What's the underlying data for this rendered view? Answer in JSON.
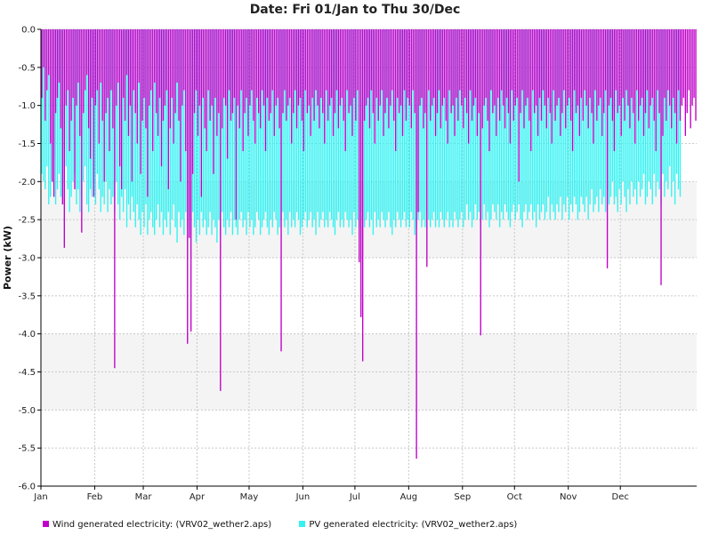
{
  "chart_data": {
    "type": "bar",
    "title": "Date: Fri 01/Jan to Thu 30/Dec",
    "xlabel": "",
    "ylabel": "Power (kW)",
    "ylim": [
      -6.0,
      0.0
    ],
    "yticks": [
      "0.0",
      "-0.5",
      "-1.0",
      "-1.5",
      "-2.0",
      "-2.5",
      "-3.0",
      "-3.5",
      "-4.0",
      "-4.5",
      "-5.0",
      "-5.5",
      "-6.0"
    ],
    "xticks": [
      "Jan",
      "Feb",
      "Mar",
      "Apr",
      "May",
      "Jun",
      "Jul",
      "Aug",
      "Sep",
      "Oct",
      "Nov",
      "Dec"
    ],
    "grid": true,
    "legend_position": "bottom",
    "colors": {
      "wind": "#c000c8",
      "pv": "#33f2f2",
      "band": "#f4f4f4",
      "grid": "#c8c8c8"
    },
    "series": [
      {
        "name": "Wind generated electricity:  (VRV02_wether2.aps)",
        "daily_min": [
          -0.9,
          -0.5,
          -1.2,
          -0.8,
          -0.6,
          -1.5,
          -2.0,
          -2.2,
          -1.1,
          -0.9,
          -0.7,
          -1.3,
          -2.3,
          -2.87,
          -1.0,
          -0.8,
          -1.6,
          -1.2,
          -0.9,
          -2.1,
          -1.0,
          -0.7,
          -1.4,
          -2.67,
          -1.1,
          -0.8,
          -0.6,
          -1.3,
          -1.7,
          -0.9,
          -2.2,
          -1.0,
          -0.8,
          -1.5,
          -0.7,
          -1.2,
          -2.0,
          -1.1,
          -0.9,
          -1.6,
          -0.8,
          -1.3,
          -4.45,
          -1.0,
          -0.7,
          -1.8,
          -2.1,
          -0.9,
          -1.2,
          -0.6,
          -1.4,
          -1.0,
          -2.0,
          -0.8,
          -1.1,
          -1.5,
          -0.7,
          -1.9,
          -1.2,
          -0.9,
          -1.3,
          -2.2,
          -1.0,
          -0.8,
          -1.6,
          -0.7,
          -1.1,
          -1.4,
          -0.9,
          -1.8,
          -1.2,
          -1.0,
          -0.8,
          -2.1,
          -1.3,
          -0.9,
          -1.5,
          -1.1,
          -0.7,
          -1.2,
          -2.0,
          -1.0,
          -0.8,
          -1.6,
          -4.13,
          -2.74,
          -3.97,
          -1.9,
          -1.1,
          -0.8,
          -1.4,
          -1.0,
          -2.2,
          -0.9,
          -1.3,
          -1.6,
          -0.8,
          -1.2,
          -1.0,
          -1.9,
          -0.9,
          -1.4,
          -1.1,
          -4.75,
          -1.3,
          -0.9,
          -1.0,
          -1.7,
          -0.8,
          -1.2,
          -1.1,
          -0.9,
          -2.5,
          -1.0,
          -1.3,
          -0.8,
          -1.6,
          -1.1,
          -0.9,
          -1.4,
          -1.0,
          -0.8,
          -1.2,
          -1.5,
          -0.9,
          -1.1,
          -1.3,
          -0.8,
          -1.0,
          -1.6,
          -0.9,
          -1.2,
          -1.1,
          -0.8,
          -1.4,
          -1.0,
          -0.9,
          -1.3,
          -4.23,
          -1.1,
          -0.8,
          -1.2,
          -1.0,
          -0.9,
          -1.5,
          -1.1,
          -0.8,
          -1.3,
          -1.0,
          -0.9,
          -1.2,
          -1.6,
          -0.8,
          -1.1,
          -1.0,
          -1.4,
          -0.9,
          -1.2,
          -0.8,
          -1.0,
          -1.3,
          -0.9,
          -1.1,
          -1.5,
          -0.8,
          -1.2,
          -1.0,
          -0.9,
          -1.4,
          -1.1,
          -0.8,
          -1.3,
          -1.0,
          -0.9,
          -1.2,
          -1.6,
          -0.8,
          -1.1,
          -1.0,
          -1.4,
          -0.9,
          -1.2,
          -0.8,
          -3.06,
          -3.78,
          -4.36,
          -1.2,
          -1.0,
          -0.9,
          -1.3,
          -0.8,
          -1.1,
          -1.5,
          -0.9,
          -1.2,
          -1.0,
          -0.8,
          -1.4,
          -1.1,
          -0.9,
          -1.3,
          -1.0,
          -0.8,
          -1.2,
          -1.6,
          -0.9,
          -1.1,
          -1.0,
          -1.4,
          -0.8,
          -1.2,
          -0.9,
          -1.0,
          -1.3,
          -0.8,
          -1.1,
          -5.64,
          -2.4,
          -1.0,
          -0.9,
          -1.3,
          -1.1,
          -3.12,
          -0.8,
          -1.2,
          -1.0,
          -0.9,
          -1.4,
          -1.1,
          -0.8,
          -1.3,
          -1.0,
          -0.9,
          -1.2,
          -1.5,
          -0.8,
          -1.1,
          -1.0,
          -1.4,
          -0.9,
          -1.2,
          -0.8,
          -1.0,
          -1.3,
          -0.9,
          -1.1,
          -1.5,
          -0.8,
          -1.2,
          -1.0,
          -0.9,
          -1.4,
          -1.1,
          -4.02,
          -1.3,
          -1.0,
          -0.9,
          -1.2,
          -1.6,
          -0.8,
          -1.1,
          -1.0,
          -1.4,
          -0.9,
          -1.2,
          -0.8,
          -1.0,
          -1.3,
          -0.9,
          -1.1,
          -1.5,
          -0.8,
          -1.2,
          -1.0,
          -0.9,
          -2.0,
          -1.1,
          -0.8,
          -1.3,
          -1.0,
          -0.9,
          -1.2,
          -1.6,
          -0.8,
          -1.1,
          -1.0,
          -1.4,
          -0.9,
          -1.2,
          -0.8,
          -1.0,
          -1.3,
          -0.9,
          -1.1,
          -1.5,
          -0.8,
          -1.2,
          -1.0,
          -0.9,
          -1.4,
          -1.1,
          -0.8,
          -1.3,
          -1.0,
          -0.9,
          -1.2,
          -1.6,
          -0.8,
          -1.1,
          -1.0,
          -1.4,
          -0.9,
          -1.2,
          -0.8,
          -1.0,
          -1.3,
          -0.9,
          -1.1,
          -1.5,
          -0.8,
          -1.2,
          -1.0,
          -0.9,
          -1.4,
          -1.1,
          -0.8,
          -3.14,
          -1.0,
          -0.9,
          -1.2,
          -1.6,
          -0.8,
          -1.1,
          -1.0,
          -1.4,
          -0.9,
          -1.2,
          -0.8,
          -1.0,
          -1.3,
          -0.9,
          -1.1,
          -1.5,
          -0.8,
          -1.2,
          -1.0,
          -0.9,
          -1.4,
          -1.1,
          -0.8,
          -1.3,
          -1.0,
          -0.9,
          -1.2,
          -1.6,
          -0.8,
          -1.1,
          -3.36,
          -1.4,
          -0.9,
          -1.2,
          -0.8,
          -1.0,
          -1.3,
          -0.9,
          -1.1,
          -1.5,
          -0.8,
          -1.2,
          -1.0,
          -0.9,
          -1.4,
          -1.1,
          -0.8,
          -1.3,
          -1.0,
          -0.9,
          -1.2
        ]
      },
      {
        "name": "PV generated electricity:  (VRV02_wether2.aps)",
        "daily_min": [
          -1.9,
          -2.0,
          -2.1,
          -1.8,
          -2.3,
          -2.2,
          -2.0,
          -1.7,
          -2.3,
          -2.1,
          -1.9,
          -2.2,
          -2.3,
          -2.0,
          -1.8,
          -2.1,
          -2.4,
          -2.2,
          -2.0,
          -1.9,
          -2.3,
          -2.1,
          -2.4,
          -2.2,
          -2.0,
          -1.8,
          -2.3,
          -2.4,
          -2.1,
          -2.2,
          -2.0,
          -2.3,
          -1.9,
          -2.1,
          -2.4,
          -2.2,
          -2.3,
          -2.0,
          -2.4,
          -2.1,
          -2.3,
          -2.2,
          -2.4,
          -2.0,
          -2.3,
          -2.5,
          -2.2,
          -2.4,
          -2.1,
          -2.6,
          -2.3,
          -2.5,
          -2.2,
          -2.4,
          -2.6,
          -2.3,
          -2.5,
          -2.7,
          -2.4,
          -2.6,
          -2.3,
          -2.7,
          -2.5,
          -2.4,
          -2.6,
          -2.7,
          -2.5,
          -2.3,
          -2.6,
          -2.4,
          -2.7,
          -2.5,
          -2.6,
          -2.4,
          -2.7,
          -2.5,
          -2.3,
          -2.6,
          -2.8,
          -2.4,
          -2.6,
          -2.5,
          -2.7,
          -2.4,
          -2.6,
          -2.5,
          -2.7,
          -2.4,
          -2.6,
          -2.8,
          -2.5,
          -2.7,
          -2.4,
          -2.6,
          -2.5,
          -2.7,
          -2.6,
          -2.4,
          -2.7,
          -2.5,
          -2.6,
          -2.8,
          -2.5,
          -2.7,
          -2.4,
          -2.6,
          -2.7,
          -2.5,
          -2.6,
          -2.4,
          -2.7,
          -2.5,
          -2.6,
          -2.7,
          -2.5,
          -2.4,
          -2.6,
          -2.5,
          -2.7,
          -2.4,
          -2.6,
          -2.5,
          -2.7,
          -2.6,
          -2.4,
          -2.5,
          -2.7,
          -2.6,
          -2.5,
          -2.4,
          -2.6,
          -2.7,
          -2.5,
          -2.6,
          -2.4,
          -2.5,
          -2.7,
          -2.6,
          -2.5,
          -2.4,
          -2.6,
          -2.5,
          -2.7,
          -2.4,
          -2.6,
          -2.5,
          -2.6,
          -2.4,
          -2.5,
          -2.7,
          -2.6,
          -2.5,
          -2.4,
          -2.6,
          -2.5,
          -2.4,
          -2.6,
          -2.5,
          -2.7,
          -2.4,
          -2.6,
          -2.5,
          -2.4,
          -2.6,
          -2.5,
          -2.6,
          -2.4,
          -2.5,
          -2.6,
          -2.7,
          -2.5,
          -2.4,
          -2.6,
          -2.5,
          -2.6,
          -2.4,
          -2.5,
          -2.6,
          -2.5,
          -2.7,
          -2.4,
          -2.6,
          -2.5,
          -2.6,
          -2.4,
          -2.5,
          -2.6,
          -2.5,
          -2.4,
          -2.6,
          -2.5,
          -2.7,
          -2.4,
          -2.6,
          -2.5,
          -2.6,
          -2.4,
          -2.5,
          -2.6,
          -2.5,
          -2.4,
          -2.6,
          -2.7,
          -2.5,
          -2.6,
          -2.4,
          -2.5,
          -2.6,
          -2.5,
          -2.4,
          -2.6,
          -2.5,
          -2.6,
          -2.4,
          -2.5,
          -2.7,
          -2.6,
          -2.5,
          -2.4,
          -2.6,
          -2.5,
          -2.6,
          -2.4,
          -2.5,
          -2.6,
          -2.5,
          -2.4,
          -2.6,
          -2.5,
          -2.6,
          -2.4,
          -2.5,
          -2.6,
          -2.5,
          -2.4,
          -2.6,
          -2.5,
          -2.6,
          -2.4,
          -2.5,
          -2.6,
          -2.5,
          -2.4,
          -2.6,
          -2.5,
          -2.3,
          -2.5,
          -2.4,
          -2.6,
          -2.5,
          -2.3,
          -2.5,
          -2.4,
          -2.6,
          -2.5,
          -2.3,
          -2.5,
          -2.4,
          -2.6,
          -2.5,
          -2.3,
          -2.4,
          -2.5,
          -2.3,
          -2.6,
          -2.4,
          -2.5,
          -2.3,
          -2.4,
          -2.5,
          -2.6,
          -2.4,
          -2.3,
          -2.5,
          -2.4,
          -2.3,
          -2.5,
          -2.6,
          -2.4,
          -2.3,
          -2.5,
          -2.4,
          -2.3,
          -2.5,
          -2.4,
          -2.6,
          -2.3,
          -2.5,
          -2.4,
          -2.3,
          -2.5,
          -2.4,
          -2.2,
          -2.5,
          -2.3,
          -2.4,
          -2.5,
          -2.3,
          -2.4,
          -2.2,
          -2.5,
          -2.3,
          -2.4,
          -2.2,
          -2.5,
          -2.3,
          -2.4,
          -2.2,
          -2.3,
          -2.5,
          -2.4,
          -2.2,
          -2.3,
          -2.4,
          -2.2,
          -2.5,
          -2.3,
          -2.1,
          -2.4,
          -2.3,
          -2.2,
          -2.4,
          -2.1,
          -2.3,
          -2.2,
          -2.4,
          -2.1,
          -2.3,
          -2.2,
          -2.0,
          -2.3,
          -2.2,
          -2.4,
          -2.1,
          -2.3,
          -2.0,
          -2.2,
          -2.4,
          -2.1,
          -2.3,
          -2.0,
          -2.2,
          -2.1,
          -2.3,
          -2.0,
          -2.2,
          -2.1,
          -1.9,
          -2.3,
          -2.2,
          -2.0,
          -2.1,
          -2.3,
          -1.9,
          -2.2,
          -2.0,
          -2.1,
          -2.3,
          -1.9,
          -2.2,
          -2.0,
          -2.1,
          -1.8,
          -2.2,
          -2.0,
          -2.3,
          -1.9,
          -2.1,
          -2.2
        ]
      }
    ]
  }
}
